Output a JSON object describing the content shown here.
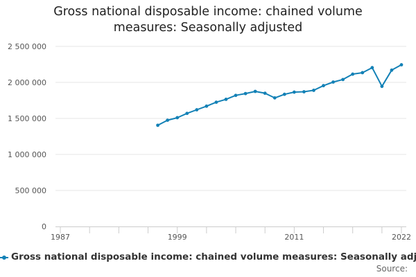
{
  "chart_data": {
    "type": "line",
    "title": "Gross national disposable income: chained volume measures: Seasonally adjusted",
    "xlabel": "",
    "ylabel": "",
    "xlim": [
      1986.5,
      2022.5
    ],
    "ylim": [
      0,
      2500000
    ],
    "grid": true,
    "legend_position": "bottom",
    "x_tick_labels": [
      "1987",
      "1999",
      "2011",
      "2022"
    ],
    "y_tick_labels": [
      "0",
      "500 000",
      "1 000 000",
      "1 500 000",
      "2 000 000",
      "2 500 000"
    ],
    "y_tick_values": [
      0,
      500000,
      1000000,
      1500000,
      2000000,
      2500000
    ],
    "series": [
      {
        "name": "Gross national disposable income: chained volume measures: Seasonally adjusted",
        "color": "#1381b6",
        "x": [
          1997,
          1998,
          1999,
          2000,
          2001,
          2002,
          2003,
          2004,
          2005,
          2006,
          2007,
          2008,
          2009,
          2010,
          2011,
          2012,
          2013,
          2014,
          2015,
          2016,
          2017,
          2018,
          2019,
          2020,
          2021,
          2022
        ],
        "values": [
          1405000,
          1475000,
          1510000,
          1570000,
          1620000,
          1670000,
          1725000,
          1765000,
          1820000,
          1845000,
          1875000,
          1850000,
          1785000,
          1835000,
          1865000,
          1870000,
          1890000,
          1955000,
          2005000,
          2040000,
          2115000,
          2135000,
          2205000,
          1945000,
          2170000,
          2245000
        ]
      }
    ]
  },
  "source_label": "Source:"
}
